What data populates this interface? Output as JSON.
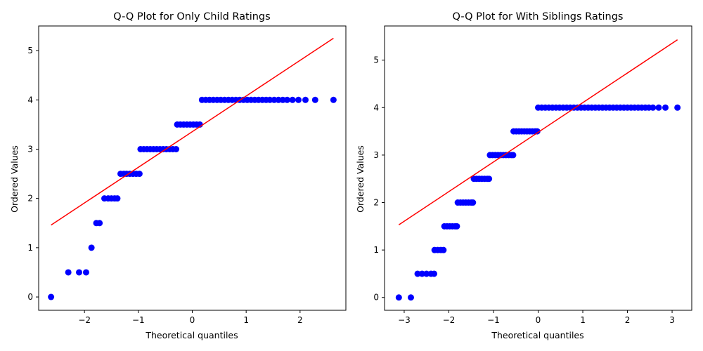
{
  "chart_data": [
    {
      "type": "scatter",
      "title": "Q-Q Plot for Only Child Ratings",
      "xlabel": "Theoretical quantiles",
      "ylabel": "Ordered Values",
      "xlim": [
        -2.85,
        2.85
      ],
      "ylim": [
        -0.27,
        5.5
      ],
      "xticks": [
        -2,
        -1,
        0,
        1,
        2
      ],
      "yticks": [
        0,
        1,
        2,
        3,
        4,
        5
      ],
      "point_color": "#0000ff",
      "line_color": "#ff0000",
      "fit_line": {
        "x": [
          -2.62,
          2.62
        ],
        "y": [
          1.46,
          5.25
        ]
      },
      "series": [
        {
          "values": [
            [
              -2.62,
              0
            ],
            [
              -2.3,
              0.5
            ],
            [
              -2.1,
              0.5
            ],
            [
              -1.97,
              0.5
            ],
            [
              -1.87,
              1
            ],
            [
              -1.78,
              1.5
            ],
            [
              -1.72,
              1.5
            ],
            [
              -1.63,
              2
            ],
            [
              -1.56,
              2
            ],
            [
              -1.5,
              2
            ],
            [
              -1.44,
              2
            ],
            [
              -1.39,
              2
            ],
            [
              -1.33,
              2.5
            ],
            [
              -1.27,
              2.5
            ],
            [
              -1.22,
              2.5
            ],
            [
              -1.16,
              2.5
            ],
            [
              -1.1,
              2.5
            ],
            [
              -1.04,
              2.5
            ],
            [
              -0.98,
              2.5
            ],
            [
              -0.96,
              3
            ],
            [
              -0.9,
              3
            ],
            [
              -0.84,
              3
            ],
            [
              -0.78,
              3
            ],
            [
              -0.72,
              3
            ],
            [
              -0.66,
              3
            ],
            [
              -0.6,
              3
            ],
            [
              -0.54,
              3
            ],
            [
              -0.48,
              3
            ],
            [
              -0.42,
              3
            ],
            [
              -0.36,
              3
            ],
            [
              -0.3,
              3
            ],
            [
              -0.28,
              3.5
            ],
            [
              -0.22,
              3.5
            ],
            [
              -0.16,
              3.5
            ],
            [
              -0.1,
              3.5
            ],
            [
              -0.04,
              3.5
            ],
            [
              0.02,
              3.5
            ],
            [
              0.08,
              3.5
            ],
            [
              0.14,
              3.5
            ],
            [
              0.18,
              4
            ],
            [
              0.25,
              4
            ],
            [
              0.32,
              4
            ],
            [
              0.39,
              4
            ],
            [
              0.46,
              4
            ],
            [
              0.53,
              4
            ],
            [
              0.6,
              4
            ],
            [
              0.67,
              4
            ],
            [
              0.74,
              4
            ],
            [
              0.81,
              4
            ],
            [
              0.88,
              4
            ],
            [
              0.95,
              4
            ],
            [
              1.02,
              4
            ],
            [
              1.09,
              4
            ],
            [
              1.16,
              4
            ],
            [
              1.23,
              4
            ],
            [
              1.3,
              4
            ],
            [
              1.37,
              4
            ],
            [
              1.44,
              4
            ],
            [
              1.52,
              4
            ],
            [
              1.6,
              4
            ],
            [
              1.68,
              4
            ],
            [
              1.76,
              4
            ],
            [
              1.86,
              4
            ],
            [
              1.97,
              4
            ],
            [
              2.1,
              4
            ],
            [
              2.28,
              4
            ],
            [
              2.62,
              4
            ]
          ]
        }
      ]
    },
    {
      "type": "scatter",
      "title": "Q-Q Plot for With Siblings Ratings",
      "xlabel": "Theoretical quantiles",
      "ylabel": "Ordered Values",
      "xlim": [
        -3.44,
        3.44
      ],
      "ylim": [
        -0.27,
        5.72
      ],
      "xticks": [
        -3,
        -2,
        -1,
        0,
        1,
        2,
        3
      ],
      "yticks": [
        0,
        1,
        2,
        3,
        4,
        5
      ],
      "point_color": "#0000ff",
      "line_color": "#ff0000",
      "fit_line": {
        "x": [
          -3.12,
          3.12
        ],
        "y": [
          1.53,
          5.43
        ]
      },
      "series": [
        {
          "values": [
            [
              -3.12,
              0
            ],
            [
              -2.85,
              0
            ],
            [
              -2.7,
              0.5
            ],
            [
              -2.6,
              0.5
            ],
            [
              -2.5,
              0.5
            ],
            [
              -2.4,
              0.5
            ],
            [
              -2.33,
              0.5
            ],
            [
              -2.32,
              1
            ],
            [
              -2.25,
              1
            ],
            [
              -2.18,
              1
            ],
            [
              -2.12,
              1
            ],
            [
              -2.1,
              1.5
            ],
            [
              -2.04,
              1.5
            ],
            [
              -1.98,
              1.5
            ],
            [
              -1.92,
              1.5
            ],
            [
              -1.86,
              1.5
            ],
            [
              -1.82,
              1.5
            ],
            [
              -1.8,
              2
            ],
            [
              -1.74,
              2
            ],
            [
              -1.68,
              2
            ],
            [
              -1.62,
              2
            ],
            [
              -1.56,
              2
            ],
            [
              -1.5,
              2
            ],
            [
              -1.46,
              2
            ],
            [
              -1.44,
              2.5
            ],
            [
              -1.38,
              2.5
            ],
            [
              -1.32,
              2.5
            ],
            [
              -1.26,
              2.5
            ],
            [
              -1.2,
              2.5
            ],
            [
              -1.14,
              2.5
            ],
            [
              -1.1,
              2.5
            ],
            [
              -1.08,
              3
            ],
            [
              -1.02,
              3
            ],
            [
              -0.96,
              3
            ],
            [
              -0.9,
              3
            ],
            [
              -0.84,
              3
            ],
            [
              -0.78,
              3
            ],
            [
              -0.72,
              3
            ],
            [
              -0.66,
              3
            ],
            [
              -0.6,
              3
            ],
            [
              -0.56,
              3
            ],
            [
              -0.55,
              3.5
            ],
            [
              -0.49,
              3.5
            ],
            [
              -0.43,
              3.5
            ],
            [
              -0.37,
              3.5
            ],
            [
              -0.31,
              3.5
            ],
            [
              -0.25,
              3.5
            ],
            [
              -0.19,
              3.5
            ],
            [
              -0.13,
              3.5
            ],
            [
              -0.07,
              3.5
            ],
            [
              -0.02,
              3.5
            ],
            [
              0.0,
              4
            ],
            [
              0.08,
              4
            ],
            [
              0.16,
              4
            ],
            [
              0.24,
              4
            ],
            [
              0.32,
              4
            ],
            [
              0.4,
              4
            ],
            [
              0.48,
              4
            ],
            [
              0.56,
              4
            ],
            [
              0.64,
              4
            ],
            [
              0.72,
              4
            ],
            [
              0.8,
              4
            ],
            [
              0.88,
              4
            ],
            [
              0.96,
              4
            ],
            [
              1.04,
              4
            ],
            [
              1.12,
              4
            ],
            [
              1.2,
              4
            ],
            [
              1.28,
              4
            ],
            [
              1.36,
              4
            ],
            [
              1.44,
              4
            ],
            [
              1.52,
              4
            ],
            [
              1.6,
              4
            ],
            [
              1.68,
              4
            ],
            [
              1.76,
              4
            ],
            [
              1.84,
              4
            ],
            [
              1.92,
              4
            ],
            [
              2.0,
              4
            ],
            [
              2.08,
              4
            ],
            [
              2.16,
              4
            ],
            [
              2.24,
              4
            ],
            [
              2.32,
              4
            ],
            [
              2.4,
              4
            ],
            [
              2.48,
              4
            ],
            [
              2.57,
              4
            ],
            [
              2.7,
              4
            ],
            [
              2.85,
              4
            ],
            [
              3.12,
              4
            ]
          ]
        }
      ]
    }
  ]
}
